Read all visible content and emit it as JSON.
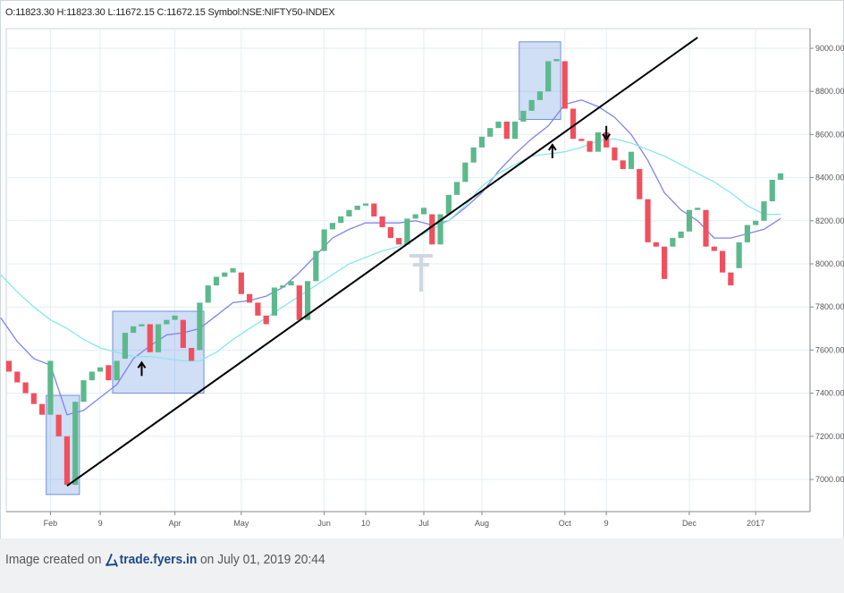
{
  "header": {
    "ohlc_text": "O:11823.30 H:11823.30 L:11672.15 C:11672.15 Symbol:NSE:NIFTY50-INDEX"
  },
  "footer": {
    "prefix": "Image created on",
    "brand": "trade.fyers.in",
    "suffix": "on July 01, 2019 20:44"
  },
  "colors": {
    "up": "#5cb98c",
    "down": "#f0505e",
    "fast_ma": "#7f85e6",
    "slow_ma": "#84e8ef",
    "trendline": "#000000",
    "highlight_fill": "rgba(120,160,230,0.35)",
    "highlight_stroke": "#6f92d6",
    "grid": "#e3eef4"
  },
  "chart_data": {
    "type": "renko",
    "symbol": "NSE:NIFTY50-INDEX",
    "box_size": 50,
    "y_axis": {
      "ticks": [
        "7000.00",
        "7200.00",
        "7400.00",
        "7600.00",
        "7800.00",
        "8000.00",
        "8200.00",
        "8400.00",
        "8600.00",
        "8800.00",
        "9000.00"
      ],
      "position": "right"
    },
    "x_axis": {
      "ticks": [
        "Feb",
        "9",
        "Apr",
        "May",
        "Jun",
        "10",
        "Jul",
        "Aug",
        "Oct",
        "9",
        "Dec",
        "2017"
      ]
    },
    "bricks": [
      {
        "x": 1,
        "open": 7550,
        "close": 7500,
        "dir": "down"
      },
      {
        "x": 2,
        "open": 7500,
        "close": 7450,
        "dir": "down"
      },
      {
        "x": 3,
        "open": 7450,
        "close": 7400,
        "dir": "down"
      },
      {
        "x": 4,
        "open": 7400,
        "close": 7350,
        "dir": "down"
      },
      {
        "x": 5,
        "open": 7350,
        "close": 7300,
        "dir": "down"
      },
      {
        "x": 6,
        "open": 7300,
        "close": 7550,
        "dir": "up"
      },
      {
        "x": 7,
        "open": 7300,
        "close": 7200,
        "dir": "down"
      },
      {
        "x": 8,
        "open": 7200,
        "close": 6975,
        "dir": "down"
      },
      {
        "x": 9,
        "open": 6975,
        "close": 7360,
        "dir": "up"
      },
      {
        "x": 10,
        "open": 7360,
        "close": 7460,
        "dir": "up"
      },
      {
        "x": 11,
        "open": 7460,
        "close": 7500,
        "dir": "up"
      },
      {
        "x": 12,
        "open": 7500,
        "close": 7520,
        "dir": "up"
      },
      {
        "x": 13,
        "open": 7530,
        "close": 7460,
        "dir": "down"
      },
      {
        "x": 14,
        "open": 7460,
        "close": 7550,
        "dir": "up"
      },
      {
        "x": 15,
        "open": 7560,
        "close": 7680,
        "dir": "up"
      },
      {
        "x": 16,
        "open": 7680,
        "close": 7710,
        "dir": "up"
      },
      {
        "x": 17,
        "open": 7710,
        "close": 7720,
        "dir": "up"
      },
      {
        "x": 18,
        "open": 7720,
        "close": 7590,
        "dir": "down"
      },
      {
        "x": 19,
        "open": 7590,
        "close": 7720,
        "dir": "up"
      },
      {
        "x": 20,
        "open": 7720,
        "close": 7740,
        "dir": "up"
      },
      {
        "x": 21,
        "open": 7740,
        "close": 7760,
        "dir": "up"
      },
      {
        "x": 22,
        "open": 7740,
        "close": 7610,
        "dir": "down"
      },
      {
        "x": 23,
        "open": 7610,
        "close": 7550,
        "dir": "down"
      },
      {
        "x": 24,
        "open": 7600,
        "close": 7820,
        "dir": "up"
      },
      {
        "x": 25,
        "open": 7820,
        "close": 7900,
        "dir": "up"
      },
      {
        "x": 26,
        "open": 7900,
        "close": 7940,
        "dir": "up"
      },
      {
        "x": 27,
        "open": 7940,
        "close": 7960,
        "dir": "up"
      },
      {
        "x": 28,
        "open": 7960,
        "close": 7980,
        "dir": "up"
      },
      {
        "x": 29,
        "open": 7960,
        "close": 7860,
        "dir": "down"
      },
      {
        "x": 30,
        "open": 7860,
        "close": 7820,
        "dir": "down"
      },
      {
        "x": 31,
        "open": 7820,
        "close": 7760,
        "dir": "down"
      },
      {
        "x": 32,
        "open": 7760,
        "close": 7720,
        "dir": "down"
      },
      {
        "x": 33,
        "open": 7760,
        "close": 7890,
        "dir": "up"
      },
      {
        "x": 34,
        "open": 7890,
        "close": 7900,
        "dir": "up"
      },
      {
        "x": 35,
        "open": 7900,
        "close": 7920,
        "dir": "up"
      },
      {
        "x": 36,
        "open": 7900,
        "close": 7740,
        "dir": "down"
      },
      {
        "x": 37,
        "open": 7740,
        "close": 7920,
        "dir": "up"
      },
      {
        "x": 38,
        "open": 7920,
        "close": 8060,
        "dir": "up"
      },
      {
        "x": 39,
        "open": 8060,
        "close": 8160,
        "dir": "up"
      },
      {
        "x": 40,
        "open": 8160,
        "close": 8190,
        "dir": "up"
      },
      {
        "x": 41,
        "open": 8190,
        "close": 8220,
        "dir": "up"
      },
      {
        "x": 42,
        "open": 8220,
        "close": 8250,
        "dir": "up"
      },
      {
        "x": 43,
        "open": 8250,
        "close": 8270,
        "dir": "up"
      },
      {
        "x": 44,
        "open": 8270,
        "close": 8280,
        "dir": "up"
      },
      {
        "x": 45,
        "open": 8280,
        "close": 8220,
        "dir": "down"
      },
      {
        "x": 46,
        "open": 8220,
        "close": 8170,
        "dir": "down"
      },
      {
        "x": 47,
        "open": 8170,
        "close": 8120,
        "dir": "down"
      },
      {
        "x": 48,
        "open": 8120,
        "close": 8090,
        "dir": "down"
      },
      {
        "x": 49,
        "open": 8090,
        "close": 8210,
        "dir": "up"
      },
      {
        "x": 50,
        "open": 8210,
        "close": 8230,
        "dir": "up"
      },
      {
        "x": 51,
        "open": 8230,
        "close": 8260,
        "dir": "up"
      },
      {
        "x": 52,
        "open": 8230,
        "close": 8090,
        "dir": "down"
      },
      {
        "x": 53,
        "open": 8090,
        "close": 8230,
        "dir": "up"
      },
      {
        "x": 54,
        "open": 8230,
        "close": 8320,
        "dir": "up"
      },
      {
        "x": 55,
        "open": 8320,
        "close": 8380,
        "dir": "up"
      },
      {
        "x": 56,
        "open": 8380,
        "close": 8470,
        "dir": "up"
      },
      {
        "x": 57,
        "open": 8470,
        "close": 8540,
        "dir": "up"
      },
      {
        "x": 58,
        "open": 8540,
        "close": 8590,
        "dir": "up"
      },
      {
        "x": 59,
        "open": 8590,
        "close": 8630,
        "dir": "up"
      },
      {
        "x": 60,
        "open": 8630,
        "close": 8660,
        "dir": "up"
      },
      {
        "x": 61,
        "open": 8660,
        "close": 8580,
        "dir": "down"
      },
      {
        "x": 62,
        "open": 8580,
        "close": 8660,
        "dir": "up"
      },
      {
        "x": 63,
        "open": 8660,
        "close": 8710,
        "dir": "up"
      },
      {
        "x": 64,
        "open": 8710,
        "close": 8760,
        "dir": "up"
      },
      {
        "x": 65,
        "open": 8760,
        "close": 8800,
        "dir": "up"
      },
      {
        "x": 66,
        "open": 8800,
        "close": 8940,
        "dir": "up"
      },
      {
        "x": 67,
        "open": 8940,
        "close": 8950,
        "dir": "up"
      },
      {
        "x": 68,
        "open": 8940,
        "close": 8720,
        "dir": "down"
      },
      {
        "x": 69,
        "open": 8720,
        "close": 8580,
        "dir": "down"
      },
      {
        "x": 70,
        "open": 8580,
        "close": 8570,
        "dir": "down"
      },
      {
        "x": 71,
        "open": 8570,
        "close": 8520,
        "dir": "down"
      },
      {
        "x": 72,
        "open": 8520,
        "close": 8610,
        "dir": "up"
      },
      {
        "x": 73,
        "open": 8610,
        "close": 8540,
        "dir": "down"
      },
      {
        "x": 74,
        "open": 8540,
        "close": 8480,
        "dir": "down"
      },
      {
        "x": 75,
        "open": 8480,
        "close": 8440,
        "dir": "down"
      },
      {
        "x": 76,
        "open": 8440,
        "close": 8520,
        "dir": "up"
      },
      {
        "x": 77,
        "open": 8440,
        "close": 8300,
        "dir": "down"
      },
      {
        "x": 78,
        "open": 8300,
        "close": 8100,
        "dir": "down"
      },
      {
        "x": 79,
        "open": 8100,
        "close": 8080,
        "dir": "down"
      },
      {
        "x": 80,
        "open": 8080,
        "close": 7930,
        "dir": "down"
      },
      {
        "x": 81,
        "open": 8080,
        "close": 8120,
        "dir": "up"
      },
      {
        "x": 82,
        "open": 8120,
        "close": 8150,
        "dir": "up"
      },
      {
        "x": 83,
        "open": 8150,
        "close": 8250,
        "dir": "up"
      },
      {
        "x": 84,
        "open": 8250,
        "close": 8260,
        "dir": "up"
      },
      {
        "x": 85,
        "open": 8250,
        "close": 8080,
        "dir": "down"
      },
      {
        "x": 86,
        "open": 8080,
        "close": 8060,
        "dir": "down"
      },
      {
        "x": 87,
        "open": 8060,
        "close": 7960,
        "dir": "down"
      },
      {
        "x": 88,
        "open": 7960,
        "close": 7900,
        "dir": "down"
      },
      {
        "x": 89,
        "open": 7980,
        "close": 8100,
        "dir": "up"
      },
      {
        "x": 90,
        "open": 8100,
        "close": 8180,
        "dir": "up"
      },
      {
        "x": 91,
        "open": 8180,
        "close": 8200,
        "dir": "up"
      },
      {
        "x": 92,
        "open": 8200,
        "close": 8290,
        "dir": "up"
      },
      {
        "x": 93,
        "open": 8290,
        "close": 8390,
        "dir": "up"
      },
      {
        "x": 94,
        "open": 8390,
        "close": 8420,
        "dir": "up"
      }
    ],
    "moving_averages": [
      {
        "id": "fast",
        "points": [
          [
            0,
            7750
          ],
          [
            2,
            7640
          ],
          [
            4,
            7560
          ],
          [
            6,
            7530
          ],
          [
            8,
            7300
          ],
          [
            10,
            7320
          ],
          [
            12,
            7380
          ],
          [
            14,
            7440
          ],
          [
            16,
            7560
          ],
          [
            18,
            7620
          ],
          [
            20,
            7670
          ],
          [
            22,
            7680
          ],
          [
            24,
            7700
          ],
          [
            26,
            7760
          ],
          [
            28,
            7820
          ],
          [
            30,
            7830
          ],
          [
            32,
            7850
          ],
          [
            34,
            7890
          ],
          [
            36,
            7960
          ],
          [
            38,
            8040
          ],
          [
            40,
            8120
          ],
          [
            42,
            8160
          ],
          [
            44,
            8190
          ],
          [
            46,
            8190
          ],
          [
            48,
            8190
          ],
          [
            50,
            8200
          ],
          [
            52,
            8180
          ],
          [
            54,
            8200
          ],
          [
            56,
            8260
          ],
          [
            58,
            8330
          ],
          [
            60,
            8430
          ],
          [
            62,
            8510
          ],
          [
            64,
            8580
          ],
          [
            66,
            8640
          ],
          [
            68,
            8740
          ],
          [
            70,
            8760
          ],
          [
            72,
            8730
          ],
          [
            74,
            8680
          ],
          [
            76,
            8600
          ],
          [
            78,
            8480
          ],
          [
            80,
            8330
          ],
          [
            82,
            8250
          ],
          [
            84,
            8200
          ],
          [
            86,
            8120
          ],
          [
            88,
            8120
          ],
          [
            90,
            8140
          ],
          [
            92,
            8160
          ],
          [
            94,
            8210
          ]
        ]
      },
      {
        "id": "slow",
        "points": [
          [
            0,
            7950
          ],
          [
            2,
            7870
          ],
          [
            4,
            7800
          ],
          [
            6,
            7740
          ],
          [
            8,
            7700
          ],
          [
            10,
            7650
          ],
          [
            12,
            7610
          ],
          [
            14,
            7590
          ],
          [
            16,
            7570
          ],
          [
            18,
            7570
          ],
          [
            20,
            7560
          ],
          [
            22,
            7550
          ],
          [
            24,
            7550
          ],
          [
            26,
            7590
          ],
          [
            28,
            7650
          ],
          [
            30,
            7700
          ],
          [
            32,
            7750
          ],
          [
            34,
            7800
          ],
          [
            36,
            7850
          ],
          [
            38,
            7900
          ],
          [
            40,
            7950
          ],
          [
            42,
            8000
          ],
          [
            44,
            8030
          ],
          [
            46,
            8060
          ],
          [
            48,
            8080
          ],
          [
            50,
            8120
          ],
          [
            52,
            8160
          ],
          [
            54,
            8200
          ],
          [
            56,
            8270
          ],
          [
            58,
            8360
          ],
          [
            60,
            8420
          ],
          [
            62,
            8460
          ],
          [
            64,
            8500
          ],
          [
            66,
            8510
          ],
          [
            68,
            8520
          ],
          [
            70,
            8540
          ],
          [
            72,
            8570
          ],
          [
            74,
            8580
          ],
          [
            76,
            8560
          ],
          [
            78,
            8530
          ],
          [
            80,
            8500
          ],
          [
            82,
            8460
          ],
          [
            84,
            8420
          ],
          [
            86,
            8380
          ],
          [
            88,
            8330
          ],
          [
            90,
            8270
          ],
          [
            92,
            8230
          ],
          [
            94,
            8230
          ]
        ]
      }
    ],
    "trendline": {
      "from": [
        8,
        6970
      ],
      "to": [
        84,
        9050
      ]
    },
    "highlight_boxes": [
      {
        "x0": 5.5,
        "x1": 9.5,
        "y0": 6930,
        "y1": 7390
      },
      {
        "x0": 13.5,
        "x1": 24.5,
        "y0": 7400,
        "y1": 7780
      },
      {
        "x0": 62.5,
        "x1": 67.5,
        "y0": 8670,
        "y1": 9030
      }
    ],
    "arrows": [
      {
        "x": 17,
        "price": 7480,
        "direction": "up"
      },
      {
        "x": 66.5,
        "price": 8490,
        "direction": "up"
      },
      {
        "x": 73,
        "price": 8640,
        "direction": "down"
      }
    ],
    "x_tick_positions": [
      {
        "label": "Feb",
        "x": 6
      },
      {
        "label": "9",
        "x": 12
      },
      {
        "label": "Apr",
        "x": 21
      },
      {
        "label": "May",
        "x": 29
      },
      {
        "label": "Jun",
        "x": 39
      },
      {
        "label": "10",
        "x": 44
      },
      {
        "label": "Jul",
        "x": 51
      },
      {
        "label": "Aug",
        "x": 58
      },
      {
        "label": "Oct",
        "x": 68
      },
      {
        "label": "9",
        "x": 73
      },
      {
        "label": "Dec",
        "x": 83
      },
      {
        "label": "2017",
        "x": 91
      }
    ]
  }
}
